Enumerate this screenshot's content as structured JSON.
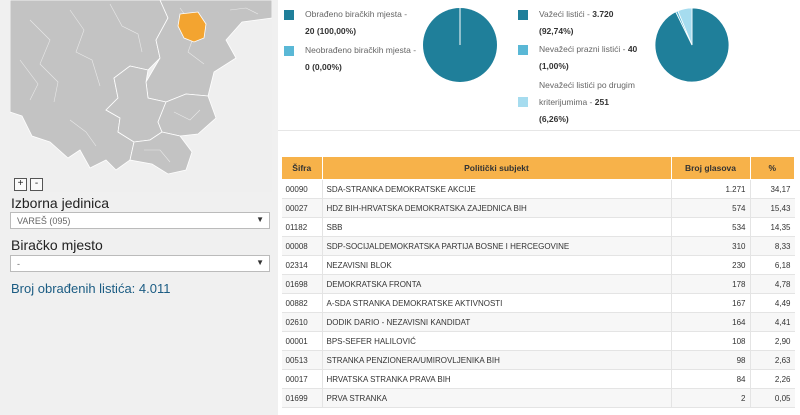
{
  "map": {
    "highlight_color": "#f3a430",
    "region_color": "#c3c3c3"
  },
  "zoom": {
    "plus": "+",
    "minus": "-"
  },
  "left": {
    "unit_label": "Izborna jedinica",
    "unit_value": "VAREŠ (095)",
    "station_label": "Biračko mjesto",
    "station_value": "-",
    "count_text": "Broj obrađenih listića: 4.011"
  },
  "stats": {
    "processed": {
      "label": "Obrađeno biračkih mjesta -",
      "value": "20 (100,00%)",
      "color": "#1f7f9a"
    },
    "unprocessed": {
      "label": "Neobrađeno biračkih mjesta -",
      "value": "0 (0,00%)",
      "color": "#5ab8d6"
    },
    "valid": {
      "label": "Važeći listići -",
      "value": "3.720",
      "pct": "(92,74%)",
      "color": "#1f7f9a"
    },
    "blank": {
      "label": "Nevažeći prazni listići -",
      "value": "40",
      "pct": "(1,00%)",
      "color": "#5ab8d6"
    },
    "other_invalid": {
      "label1": "Nevažeći listići po drugim",
      "label2": "kriterijumima -",
      "value": "251",
      "pct": "(6,26%)",
      "color": "#a6dcef"
    }
  },
  "chart_data": [
    {
      "type": "pie",
      "categories": [
        "Obrađeno biračkih mjesta",
        "Neobrađeno biračkih mjesta"
      ],
      "values": [
        100.0,
        0.0
      ]
    },
    {
      "type": "pie",
      "categories": [
        "Važeći listići",
        "Nevažeći prazni listići",
        "Nevažeći listići po drugim kriterijumima"
      ],
      "values": [
        92.74,
        1.0,
        6.26
      ]
    }
  ],
  "table": {
    "headers": [
      "Šifra",
      "Politički subjekt",
      "Broj glasova",
      "%"
    ],
    "rows": [
      [
        "00090",
        "SDA-STRANKA DEMOKRATSKE AKCIJE",
        "1.271",
        "34,17"
      ],
      [
        "00027",
        "HDZ BIH-HRVATSKA DEMOKRATSKA ZAJEDNICA BIH",
        "574",
        "15,43"
      ],
      [
        "01182",
        "SBB",
        "534",
        "14,35"
      ],
      [
        "00008",
        "SDP-SOCIJALDEMOKRATSKA PARTIJA BOSNE I HERCEGOVINE",
        "310",
        "8,33"
      ],
      [
        "02314",
        "NEZAVISNI BLOK",
        "230",
        "6,18"
      ],
      [
        "01698",
        "DEMOKRATSKA FRONTA",
        "178",
        "4,78"
      ],
      [
        "00882",
        "A-SDA STRANKA DEMOKRATSKE AKTIVNOSTI",
        "167",
        "4,49"
      ],
      [
        "02610",
        "DODIK DARIO - NEZAVISNI KANDIDAT",
        "164",
        "4,41"
      ],
      [
        "00001",
        "BPS-SEFER HALILOVIĆ",
        "108",
        "2,90"
      ],
      [
        "00513",
        "STRANKA PENZIONERA/UMIROVLJENIKA BIH",
        "98",
        "2,63"
      ],
      [
        "00017",
        "HRVATSKA STRANKA PRAVA BIH",
        "84",
        "2,26"
      ],
      [
        "01699",
        "PRVA STRANKA",
        "2",
        "0,05"
      ]
    ]
  }
}
